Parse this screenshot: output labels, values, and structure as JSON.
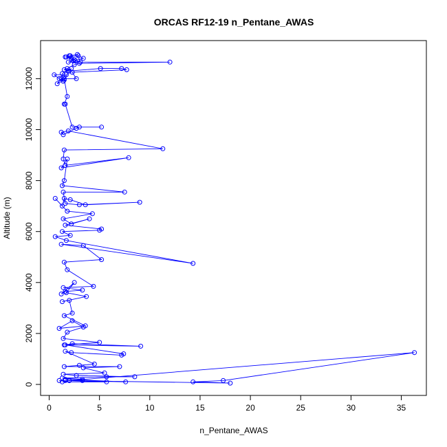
{
  "chart_data": {
    "type": "line",
    "title": "ORCAS RF12-19 n_Pentane_AWAS",
    "xlabel": "n_Pentane_AWAS",
    "ylabel": "Altitude (m)",
    "xlim": [
      0,
      36.5
    ],
    "ylim": [
      0,
      13000
    ],
    "x_ticks": [
      0,
      5,
      10,
      15,
      20,
      25,
      30,
      35
    ],
    "y_ticks": [
      0,
      2000,
      4000,
      6000,
      8000,
      10000,
      12000
    ],
    "x_tick_labels": [
      "0",
      "5",
      "10",
      "15",
      "20",
      "25",
      "30",
      "35"
    ],
    "y_tick_labels": [
      "0",
      "2000",
      "4000",
      "6000",
      "8000",
      "10000",
      "12000"
    ],
    "series_color": "#0000ff",
    "grid": false,
    "series": [
      {
        "x": [
          2.0,
          2.8,
          3.1,
          2.6,
          1.7,
          2.2,
          2.5,
          2.1,
          1.6,
          2.9,
          3.4,
          2.4,
          1.9,
          12.0,
          3.0,
          2.5,
          1.8,
          1.5,
          1.9,
          2.2,
          1.3,
          1.4,
          1.7,
          0.5,
          1.0,
          1.4,
          1.2,
          0.8,
          1.5,
          2.0,
          5.1,
          7.2,
          7.7,
          2.3,
          2.7,
          1.5,
          1.8,
          1.5,
          1.6,
          2.3,
          5.2,
          3.0,
          2.7,
          1.4,
          1.2,
          1.9,
          11.3,
          1.5,
          1.4,
          1.6,
          7.9,
          1.2,
          1.8,
          1.5,
          1.3,
          7.5,
          1.4,
          1.6,
          3.0,
          9.0,
          3.6,
          2.1,
          1.5,
          1.3,
          0.6,
          1.8,
          4.3,
          1.4,
          2.2,
          4.0,
          1.6,
          5.2,
          5.0,
          1.3,
          2.1,
          0.6,
          1.7,
          14.3,
          1.2,
          3.4,
          5.2,
          1.5,
          1.8,
          4.4,
          1.4,
          3.3,
          1.6,
          1.2,
          2.5,
          1.7,
          3.7,
          1.3,
          2.0,
          2.3,
          1.5,
          3.6,
          1.0,
          2.3,
          3.4,
          1.8,
          1.4,
          5.0,
          1.5,
          9.1,
          2.3,
          1.6,
          7.4,
          7.2,
          2.2,
          1.6,
          4.5,
          3.0,
          1.5,
          7.0,
          3.4,
          5.5,
          1.4,
          2.7,
          8.5,
          5.7,
          1.3,
          3.3,
          2.0,
          36.3,
          17.3,
          14.3,
          18.0,
          1.6,
          5.7,
          1.3,
          2.0,
          7.6,
          1.6,
          3.3,
          1.0
        ],
        "y": [
          12900,
          12950,
          12650,
          12700,
          12850,
          12800,
          12750,
          12900,
          12850,
          12900,
          12800,
          12700,
          12650,
          12650,
          12600,
          12550,
          12400,
          12350,
          12300,
          12400,
          12200,
          12050,
          12150,
          12150,
          12000,
          11900,
          12000,
          11800,
          11950,
          12300,
          12400,
          12400,
          12350,
          12250,
          12000,
          12000,
          11300,
          11000,
          11000,
          10100,
          10100,
          10100,
          10050,
          9800,
          9900,
          9950,
          9250,
          9200,
          8850,
          8600,
          8900,
          8500,
          8850,
          8000,
          7800,
          7550,
          7550,
          7100,
          7050,
          7150,
          7050,
          7250,
          7300,
          7000,
          7300,
          6800,
          6700,
          6500,
          6300,
          6500,
          6250,
          6100,
          6050,
          6000,
          5850,
          5800,
          5650,
          4750,
          5500,
          5450,
          4900,
          4800,
          4500,
          3850,
          3800,
          3700,
          3650,
          3550,
          4000,
          3600,
          3450,
          3250,
          3300,
          2800,
          2700,
          2300,
          2200,
          2500,
          2250,
          2050,
          1800,
          1650,
          1550,
          1500,
          1600,
          1550,
          1200,
          1150,
          1250,
          1300,
          800,
          750,
          700,
          700,
          650,
          450,
          400,
          350,
          300,
          300,
          250,
          200,
          150,
          1250,
          150,
          100,
          50,
          150,
          100,
          100,
          150,
          100,
          200,
          150,
          150
        ]
      }
    ]
  }
}
